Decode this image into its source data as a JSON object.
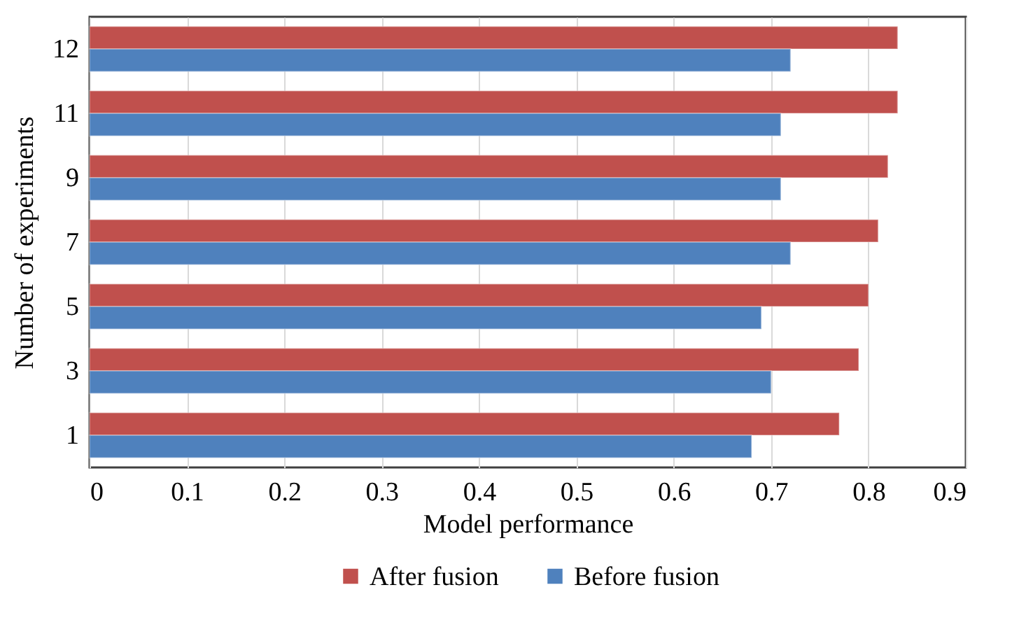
{
  "chart_data": {
    "type": "bar",
    "orientation": "horizontal",
    "xlabel": "Model performance",
    "ylabel": "Number of experiments",
    "categories": [
      "12",
      "11",
      "9",
      "7",
      "5",
      "3",
      "1"
    ],
    "series": [
      {
        "name": "After fusion",
        "color": "#c0504d",
        "values": [
          0.83,
          0.83,
          0.82,
          0.81,
          0.8,
          0.79,
          0.77
        ]
      },
      {
        "name": "Before fusion",
        "color": "#4f81bd",
        "values": [
          0.72,
          0.71,
          0.71,
          0.72,
          0.69,
          0.7,
          0.68
        ]
      }
    ],
    "xlim": [
      0,
      0.9
    ],
    "xticks": [
      0,
      0.1,
      0.2,
      0.3,
      0.4,
      0.5,
      0.6,
      0.7,
      0.8,
      0.9
    ],
    "grid": "x",
    "legend": "bottom"
  }
}
